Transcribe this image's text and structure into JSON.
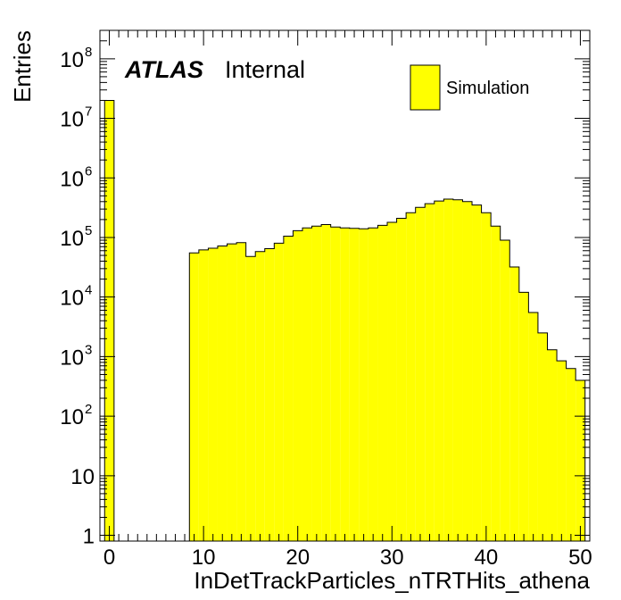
{
  "chart_data": {
    "type": "bar",
    "xlabel": "InDetTrackParticles_nTRTHits_athena",
    "ylabel": "Entries",
    "xlim": [
      -1,
      51
    ],
    "ylim": [
      0.8,
      300000000
    ],
    "yscale": "log",
    "grid": false,
    "legend_position": "top-right",
    "fill_color": "#ffff00",
    "line_color": "#000000",
    "x_ticks": [
      "0",
      "10",
      "20",
      "30",
      "40",
      "50"
    ],
    "x_tick_values": [
      0,
      10,
      20,
      30,
      40,
      50
    ],
    "y_ticks": [
      {
        "value": 1,
        "base": "1",
        "exp": ""
      },
      {
        "value": 10,
        "base": "10",
        "exp": ""
      },
      {
        "value": 100,
        "base": "10",
        "exp": "2"
      },
      {
        "value": 1000,
        "base": "10",
        "exp": "3"
      },
      {
        "value": 10000,
        "base": "10",
        "exp": "4"
      },
      {
        "value": 100000,
        "base": "10",
        "exp": "5"
      },
      {
        "value": 1000000,
        "base": "10",
        "exp": "6"
      },
      {
        "value": 10000000,
        "base": "10",
        "exp": "7"
      },
      {
        "value": 100000000,
        "base": "10",
        "exp": "8"
      }
    ],
    "series": [
      {
        "name": "Simulation",
        "bin_width": 1,
        "bin_centers": [
          0,
          1,
          2,
          3,
          4,
          5,
          6,
          7,
          8,
          9,
          10,
          11,
          12,
          13,
          14,
          15,
          16,
          17,
          18,
          19,
          20,
          21,
          22,
          23,
          24,
          25,
          26,
          27,
          28,
          29,
          30,
          31,
          32,
          33,
          34,
          35,
          36,
          37,
          38,
          39,
          40,
          41,
          42,
          43,
          44,
          45,
          46,
          47,
          48,
          49,
          50
        ],
        "values": [
          20000000,
          0,
          0,
          0,
          0,
          0,
          0,
          0,
          0,
          55000,
          62000,
          66000,
          72000,
          78000,
          82000,
          48000,
          58000,
          65000,
          80000,
          105000,
          130000,
          145000,
          155000,
          165000,
          150000,
          145000,
          142000,
          140000,
          145000,
          160000,
          180000,
          210000,
          260000,
          320000,
          370000,
          410000,
          440000,
          430000,
          400000,
          350000,
          260000,
          155000,
          90000,
          32000,
          12000,
          5500,
          2500,
          1300,
          850,
          630,
          400
        ]
      }
    ],
    "annotations": {
      "experiment": "ATLAS",
      "status": "Internal"
    }
  }
}
